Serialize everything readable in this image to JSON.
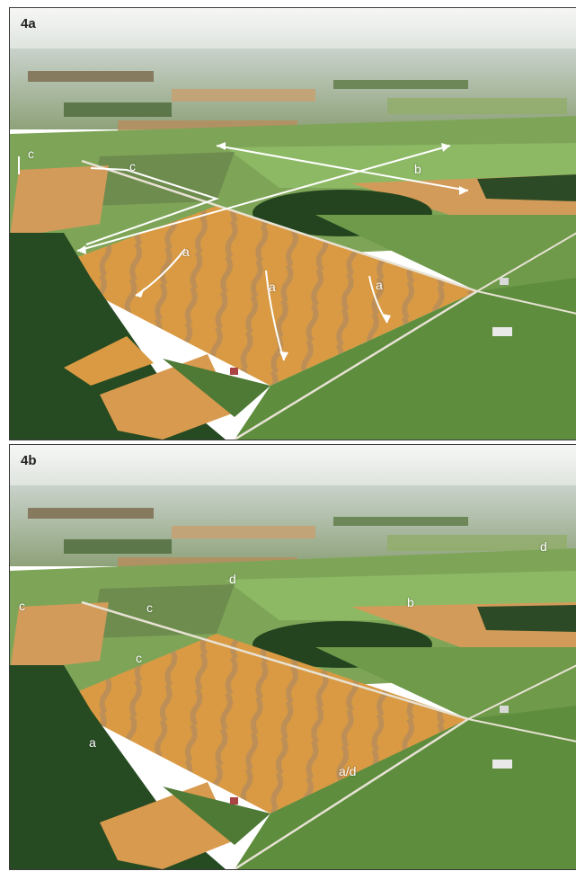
{
  "figure": {
    "panels": [
      {
        "id": "4a",
        "label": "4a",
        "annotations": [
          "a",
          "a",
          "a",
          "b",
          "c",
          "c"
        ]
      },
      {
        "id": "4b",
        "label": "4b",
        "annotations": [
          "a",
          "a/d",
          "b",
          "c",
          "c",
          "c",
          "d",
          "d"
        ]
      }
    ]
  },
  "colors": {
    "sky": "#f4f6f3",
    "horizon_haze": "#c9d2cb",
    "wheat_field": "#d99a43",
    "wheat_stripe": "#b98e5a",
    "green_field": "#6f9a4a",
    "forest": "#23441f",
    "annotation": "#ffffff",
    "panel_border": "#3a3a3a"
  }
}
